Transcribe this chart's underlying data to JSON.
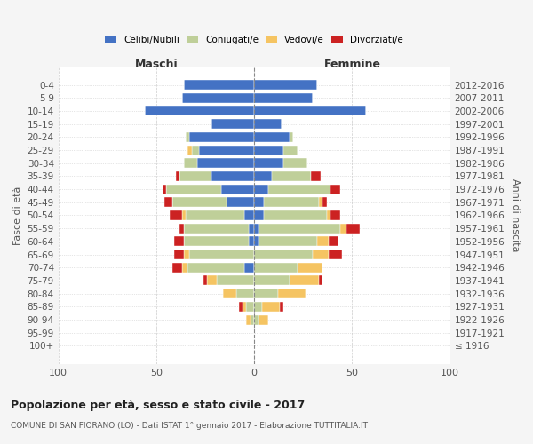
{
  "age_groups": [
    "100+",
    "95-99",
    "90-94",
    "85-89",
    "80-84",
    "75-79",
    "70-74",
    "65-69",
    "60-64",
    "55-59",
    "50-54",
    "45-49",
    "40-44",
    "35-39",
    "30-34",
    "25-29",
    "20-24",
    "15-19",
    "10-14",
    "5-9",
    "0-4"
  ],
  "birth_years": [
    "≤ 1916",
    "1917-1921",
    "1922-1926",
    "1927-1931",
    "1932-1936",
    "1937-1941",
    "1942-1946",
    "1947-1951",
    "1952-1956",
    "1957-1961",
    "1962-1966",
    "1967-1971",
    "1972-1976",
    "1977-1981",
    "1982-1986",
    "1987-1991",
    "1992-1996",
    "1997-2001",
    "2002-2006",
    "2007-2011",
    "2012-2016"
  ],
  "maschi": {
    "celibi": [
      0,
      0,
      0,
      0,
      0,
      0,
      5,
      0,
      3,
      3,
      5,
      14,
      17,
      22,
      29,
      28,
      33,
      22,
      56,
      37,
      36
    ],
    "coniugati": [
      0,
      0,
      2,
      4,
      9,
      19,
      29,
      33,
      33,
      33,
      30,
      28,
      28,
      16,
      7,
      4,
      2,
      0,
      0,
      0,
      0
    ],
    "vedovi": [
      0,
      0,
      2,
      2,
      7,
      5,
      3,
      3,
      0,
      0,
      2,
      0,
      0,
      0,
      0,
      2,
      0,
      0,
      0,
      0,
      0
    ],
    "divorziati": [
      0,
      0,
      0,
      2,
      0,
      2,
      5,
      5,
      5,
      2,
      6,
      4,
      2,
      2,
      0,
      0,
      0,
      0,
      0,
      0,
      0
    ]
  },
  "femmine": {
    "nubili": [
      0,
      0,
      0,
      0,
      0,
      0,
      0,
      0,
      2,
      2,
      5,
      5,
      7,
      9,
      15,
      15,
      18,
      14,
      57,
      30,
      32
    ],
    "coniugate": [
      0,
      0,
      2,
      4,
      12,
      18,
      22,
      30,
      30,
      42,
      32,
      28,
      32,
      20,
      12,
      7,
      2,
      0,
      0,
      0,
      0
    ],
    "vedove": [
      0,
      0,
      5,
      9,
      14,
      15,
      13,
      8,
      6,
      3,
      2,
      2,
      0,
      0,
      0,
      0,
      0,
      0,
      0,
      0,
      0
    ],
    "divorziate": [
      0,
      0,
      0,
      2,
      0,
      2,
      0,
      7,
      5,
      7,
      5,
      2,
      5,
      5,
      0,
      0,
      0,
      0,
      0,
      0,
      0
    ]
  },
  "colors": {
    "celibi_nubili": "#4472C4",
    "coniugati": "#BFCF99",
    "vedovi": "#F5C462",
    "divorziati": "#CC2222"
  },
  "xlim": 100,
  "title": "Popolazione per età, sesso e stato civile - 2017",
  "subtitle": "COMUNE DI SAN FIORANO (LO) - Dati ISTAT 1° gennaio 2017 - Elaborazione TUTTITALIA.IT",
  "ylabel_left": "Fasce di età",
  "ylabel_right": "Anni di nascita",
  "xlabel_left": "Maschi",
  "xlabel_right": "Femmine",
  "bg_color": "#f5f5f5",
  "plot_bg_color": "#ffffff"
}
